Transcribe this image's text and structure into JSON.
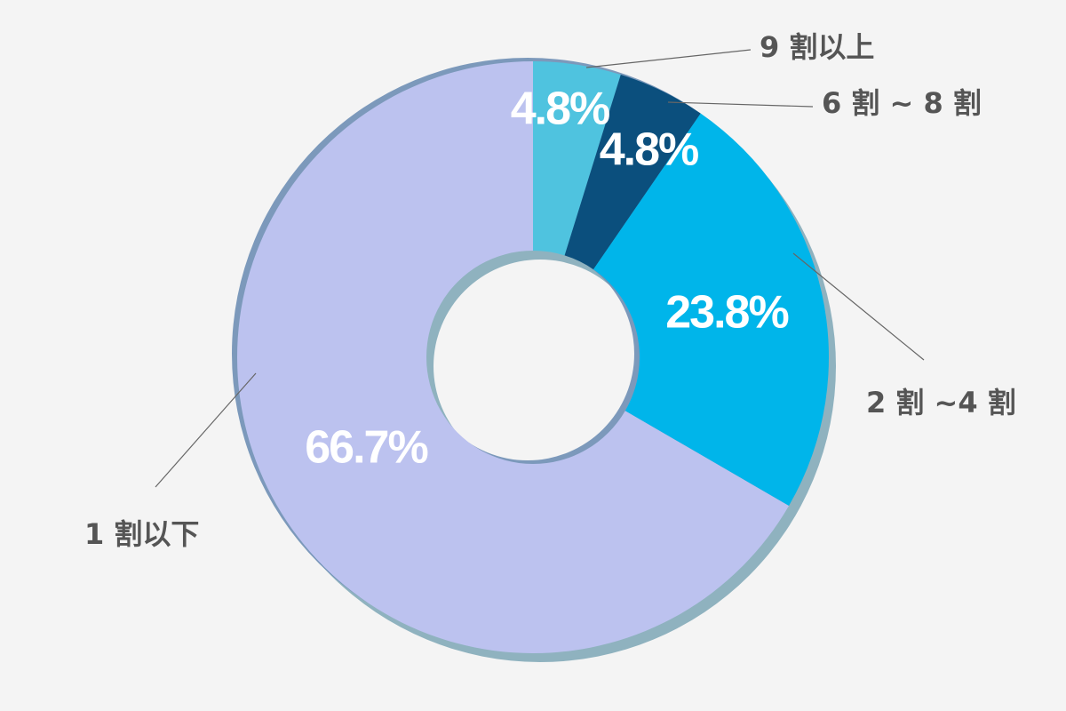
{
  "chart_data": {
    "type": "donut",
    "categories": [
      "9 割以上",
      "6 割 ~ 8 割",
      "2 割 ~4 割",
      "1 割以下"
    ],
    "values": [
      4.8,
      4.8,
      23.8,
      66.7
    ],
    "value_labels": [
      "4.8%",
      "4.8%",
      "23.8%",
      "66.7%"
    ],
    "colors": [
      "#4fc3df",
      "#0b4f7d",
      "#00b5ea",
      "#bcc2ef"
    ]
  }
}
